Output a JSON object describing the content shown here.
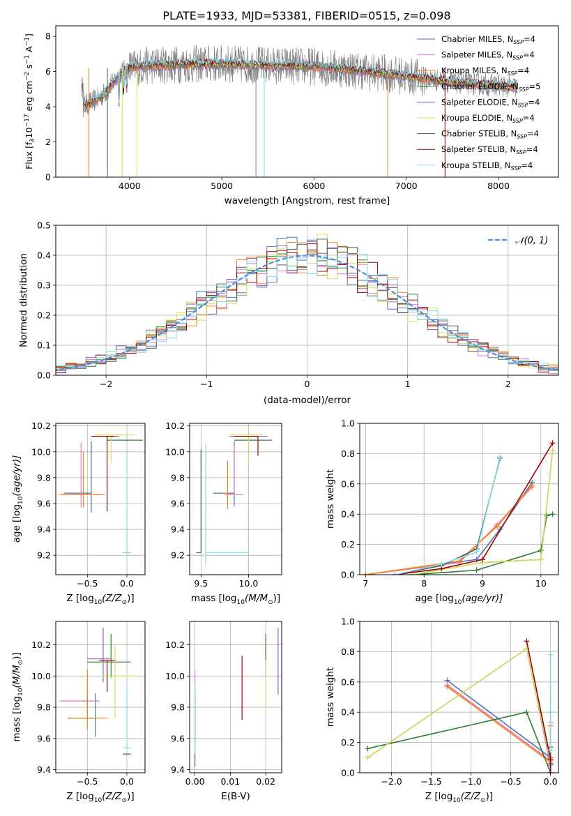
{
  "figure_title": "PLATE=1933, MJD=53381, FIBERID=0515, z=0.098",
  "colors": {
    "Chabrier MILES": "#4c72b0",
    "Salpeter MILES": "#e377c2",
    "Kroupa MILES": "#ff7f0e",
    "Chabrier ELODIE": "#2e7d32",
    "Salpeter ELODIE": "#9467bd",
    "Kroupa ELODIE": "#d4e157",
    "Chabrier STELIB": "#555555",
    "Salpeter STELIB": "#a00000",
    "Kroupa STELIB": "#80deea",
    "normal": "#4a90d9"
  },
  "chart_data": [
    {
      "id": "spectrum",
      "type": "line",
      "xlabel": "wavelength [Angstrom, rest frame]",
      "ylabel": "Flux [f",
      "ylabel_rest": "10",
      "ylabel_exp1": "−17",
      "ylabel_mid": " erg cm",
      "ylabel_exp2": "−2",
      "ylabel_mid2": " s",
      "ylabel_exp3": "−1",
      "ylabel_end": " A",
      "ylabel_exp4": "−1",
      "ylabel_close": "]",
      "xlim": [
        3200,
        8650
      ],
      "ylim": [
        0,
        8.6
      ],
      "xticks": [
        4000,
        5000,
        6000,
        7000,
        8000
      ],
      "yticks": [
        0,
        2,
        4,
        6,
        8
      ],
      "legend": [
        {
          "name": "Chabrier MILES, N",
          "sub": "SSP",
          "val": "=4"
        },
        {
          "name": "Salpeter MILES, N",
          "sub": "SSP",
          "val": "=4"
        },
        {
          "name": "Kroupa MILES, N",
          "sub": "SSP",
          "val": "=4"
        },
        {
          "name": "Chabrier ELODIE, N",
          "sub": "SSP",
          "val": "=5"
        },
        {
          "name": "Salpeter ELODIE, N",
          "sub": "SSP",
          "val": "=4"
        },
        {
          "name": "Kroupa ELODIE, N",
          "sub": "SSP",
          "val": "=4"
        },
        {
          "name": "Chabrier STELIB, N",
          "sub": "SSP",
          "val": "=4"
        },
        {
          "name": "Salpeter STELIB, N",
          "sub": "SSP",
          "val": "=4"
        },
        {
          "name": "Kroupa STELIB, N",
          "sub": "SSP",
          "val": "=4"
        }
      ],
      "continuum": [
        [
          3500,
          4.0
        ],
        [
          3600,
          4.3
        ],
        [
          3700,
          4.6
        ],
        [
          3800,
          5.2
        ],
        [
          3900,
          5.9
        ],
        [
          4000,
          6.2
        ],
        [
          4200,
          6.35
        ],
        [
          4500,
          6.4
        ],
        [
          5000,
          6.45
        ],
        [
          5500,
          6.35
        ],
        [
          6000,
          6.3
        ],
        [
          6500,
          6.05
        ],
        [
          7000,
          5.75
        ],
        [
          7500,
          5.4
        ],
        [
          8000,
          5.2
        ],
        [
          8200,
          5.1
        ]
      ],
      "legend_position": "upper right"
    },
    {
      "id": "residual_hist",
      "type": "histogram",
      "xlabel": "(data-model)/error",
      "ylabel": "Normed distribution",
      "xlim": [
        -2.5,
        2.5
      ],
      "ylim": [
        0,
        0.5
      ],
      "xticks": [
        -2,
        -1,
        0,
        1,
        2
      ],
      "yticks": [
        0,
        0.1,
        0.2,
        0.3,
        0.4,
        0.5
      ],
      "bin_width": 0.1,
      "legend": [
        {
          "name": "𝒩(0, 1)"
        }
      ],
      "legend_position": "upper right",
      "grid": true
    },
    {
      "id": "age_vs_Z",
      "type": "errorbar",
      "xlabel": "Z [log",
      "xlabel_sub": "10",
      "xlabel_rest": "(Z/Z",
      "xlabel_sun": "⊙",
      "xlabel_close": ")]",
      "ylabel": "age  [log",
      "ylabel_sub": "10",
      "ylabel_rest": "(age/yr)]",
      "xlim": [
        -0.9,
        0.23
      ],
      "ylim": [
        9.05,
        10.22
      ],
      "xticks": [
        -0.5,
        0.0
      ],
      "yticks": [
        9.2,
        9.4,
        9.6,
        9.8,
        10.0,
        10.2
      ],
      "points": [
        {
          "model": "Chabrier MILES",
          "x": -0.45,
          "y": 9.68,
          "xerr": [
            0.35,
            0.0
          ],
          "yerr": [
            0.15,
            0.4
          ]
        },
        {
          "model": "Salpeter MILES",
          "x": -0.58,
          "y": 9.67,
          "xerr": [
            0.25,
            0.3
          ],
          "yerr": [
            0.1,
            0.4
          ]
        },
        {
          "model": "Kroupa MILES",
          "x": -0.55,
          "y": 9.67,
          "xerr": [
            0.3,
            0.2
          ],
          "yerr": [
            0.1,
            0.33
          ]
        },
        {
          "model": "Chabrier ELODIE",
          "x": -0.05,
          "y": 10.09,
          "xerr": [
            0.2,
            0.25
          ],
          "yerr": [
            0.0,
            0.0
          ]
        },
        {
          "model": "Salpeter ELODIE",
          "x": -0.1,
          "y": 10.12,
          "xerr": [
            0.3,
            0.0
          ],
          "yerr": [
            0.0,
            0.0
          ]
        },
        {
          "model": "Kroupa ELODIE",
          "x": -0.2,
          "y": 10.13,
          "xerr": [
            0.2,
            0.3
          ],
          "yerr": [
            0.22,
            0.0
          ]
        },
        {
          "model": "Chabrier STELIB",
          "x": 0.0,
          "y": 9.22,
          "xerr": [
            0.05,
            0.05
          ],
          "yerr": [
            0.0,
            0.0
          ]
        },
        {
          "model": "Salpeter STELIB",
          "x": -0.25,
          "y": 10.12,
          "xerr": [
            0.2,
            0.1
          ],
          "yerr": [
            0.58,
            0.0
          ]
        },
        {
          "model": "Kroupa STELIB",
          "x": 0.0,
          "y": 9.22,
          "xerr": [
            0.05,
            0.05
          ],
          "yerr": [
            0.0,
            0.8
          ]
        }
      ]
    },
    {
      "id": "age_vs_mass",
      "type": "errorbar",
      "xlabel": "mass [log",
      "xlabel_sub": "10",
      "xlabel_rest": "(M/M",
      "xlabel_sun": "⊙",
      "xlabel_close": ")]",
      "xlim": [
        9.38,
        10.35
      ],
      "ylim": [
        9.05,
        10.22
      ],
      "xticks": [
        9.5,
        10.0
      ],
      "yticks": [
        9.2,
        9.4,
        9.6,
        9.8,
        10.0,
        10.2
      ],
      "points": [
        {
          "model": "Chabrier MILES",
          "x": 9.85,
          "y": 9.68,
          "xerr": [
            0.22,
            0.0
          ],
          "yerr": [
            0.1,
            0.4
          ]
        },
        {
          "model": "Salpeter MILES",
          "x": 9.85,
          "y": 9.67,
          "xerr": [
            0.1,
            0.1
          ],
          "yerr": [
            0.0,
            0.38
          ]
        },
        {
          "model": "Kroupa MILES",
          "x": 9.78,
          "y": 9.68,
          "xerr": [
            0.05,
            0.0
          ],
          "yerr": [
            0.12,
            0.25
          ]
        },
        {
          "model": "Chabrier ELODIE",
          "x": 10.05,
          "y": 10.09,
          "xerr": [
            0.2,
            0.2
          ],
          "yerr": [
            0.0,
            0.0
          ]
        },
        {
          "model": "Salpeter ELODIE",
          "x": 10.05,
          "y": 10.12,
          "xerr": [
            0.25,
            0.15
          ],
          "yerr": [
            0.0,
            0.0
          ]
        },
        {
          "model": "Kroupa ELODIE",
          "x": 10.0,
          "y": 10.13,
          "xerr": [
            0.2,
            0.15
          ],
          "yerr": [
            0.2,
            0.0
          ]
        },
        {
          "model": "Chabrier STELIB",
          "x": 9.5,
          "y": 9.22,
          "xerr": [
            0.05,
            0.0
          ],
          "yerr": [
            0.0,
            0.8
          ]
        },
        {
          "model": "Salpeter STELIB",
          "x": 10.1,
          "y": 10.12,
          "xerr": [
            0.25,
            0.0
          ],
          "yerr": [
            0.15,
            0.0
          ]
        },
        {
          "model": "Kroupa STELIB",
          "x": 9.55,
          "y": 9.22,
          "xerr": [
            0.0,
            0.45
          ],
          "yerr": [
            0.1,
            0.84
          ]
        }
      ]
    },
    {
      "id": "massweight_vs_age",
      "type": "line",
      "xlabel": "age  [log",
      "xlabel_sub": "10",
      "xlabel_rest": "(age/yr)]",
      "ylabel": "mass weight",
      "xlim": [
        6.9,
        10.3
      ],
      "ylim": [
        0,
        1.0
      ],
      "xticks": [
        7,
        8,
        9,
        10
      ],
      "yticks": [
        0.0,
        0.2,
        0.4,
        0.6,
        0.8,
        1.0
      ],
      "series": [
        {
          "model": "Chabrier MILES",
          "x": [
            7.0,
            8.3,
            8.9,
            9.3,
            9.85
          ],
          "y": [
            0.0,
            0.07,
            0.1,
            0.3,
            0.61
          ]
        },
        {
          "model": "Salpeter MILES",
          "x": [
            7.0,
            8.6,
            9.25,
            9.85
          ],
          "y": [
            0.0,
            0.08,
            0.33,
            0.58
          ]
        },
        {
          "model": "Kroupa MILES",
          "x": [
            7.0,
            8.6,
            9.25,
            9.85
          ],
          "y": [
            0.0,
            0.09,
            0.32,
            0.59
          ]
        },
        {
          "model": "Chabrier ELODIE",
          "x": [
            7.8,
            8.9,
            10.0,
            10.1,
            10.2
          ],
          "y": [
            0.0,
            0.03,
            0.16,
            0.39,
            0.4
          ]
        },
        {
          "model": "Salpeter ELODIE",
          "x": [
            7.8,
            9.0,
            10.0,
            10.2
          ],
          "y": [
            0.0,
            0.08,
            0.1,
            0.82
          ]
        },
        {
          "model": "Kroupa ELODIE",
          "x": [
            7.8,
            9.0,
            10.0,
            10.2
          ],
          "y": [
            0.0,
            0.08,
            0.1,
            0.82
          ]
        },
        {
          "model": "Chabrier STELIB",
          "x": [
            7.5,
            8.3,
            8.9,
            9.3
          ],
          "y": [
            0.0,
            0.06,
            0.17,
            0.77
          ]
        },
        {
          "model": "Salpeter STELIB",
          "x": [
            7.5,
            8.3,
            9.0,
            10.2
          ],
          "y": [
            0.0,
            0.04,
            0.1,
            0.87
          ]
        },
        {
          "model": "Kroupa STELIB",
          "x": [
            7.5,
            8.3,
            8.9,
            9.3
          ],
          "y": [
            0.0,
            0.07,
            0.15,
            0.78
          ]
        }
      ],
      "grid": true
    },
    {
      "id": "mass_vs_Z",
      "type": "errorbar",
      "xlabel": "Z [log",
      "xlabel_sub": "10",
      "xlabel_rest": "(Z/Z",
      "xlabel_sun": "⊙",
      "xlabel_close": ")]",
      "ylabel": "mass [log",
      "ylabel_sub": "10",
      "ylabel_rest": "(M/M",
      "ylabel_sun": "⊙",
      "ylabel_close": ")]",
      "xlim": [
        -0.9,
        0.23
      ],
      "ylim": [
        9.38,
        10.35
      ],
      "xticks": [
        -0.5,
        0.0
      ],
      "yticks": [
        9.4,
        9.6,
        9.8,
        10.0,
        10.2
      ],
      "points": [
        {
          "model": "Chabrier MILES",
          "x": -0.4,
          "y": 9.73,
          "xerr": [
            0.35,
            0.0
          ],
          "yerr": [
            0.12,
            0.16
          ]
        },
        {
          "model": "Salpeter MILES",
          "x": -0.5,
          "y": 9.84,
          "xerr": [
            0.35,
            0.15
          ],
          "yerr": [
            0.1,
            0.05
          ]
        },
        {
          "model": "Kroupa MILES",
          "x": -0.5,
          "y": 9.73,
          "xerr": [
            0.25,
            0.25
          ],
          "yerr": [
            0.07,
            0.31
          ]
        },
        {
          "model": "Chabrier ELODIE",
          "x": -0.2,
          "y": 10.09,
          "xerr": [
            0.3,
            0.25
          ],
          "yerr": [
            0.1,
            0.18
          ]
        },
        {
          "model": "Salpeter ELODIE",
          "x": -0.3,
          "y": 10.11,
          "xerr": [
            0.2,
            0.1
          ],
          "yerr": [
            0.15,
            0.2
          ]
        },
        {
          "model": "Kroupa ELODIE",
          "x": -0.15,
          "y": 10.0,
          "xerr": [
            0.2,
            0.3
          ],
          "yerr": [
            0.27,
            0.2
          ]
        },
        {
          "model": "Chabrier STELIB",
          "x": 0.0,
          "y": 9.5,
          "xerr": [
            0.05,
            0.05
          ],
          "yerr": [
            0.0,
            0.0
          ]
        },
        {
          "model": "Salpeter STELIB",
          "x": -0.25,
          "y": 10.1,
          "xerr": [
            0.1,
            0.1
          ],
          "yerr": [
            0.2,
            0.0
          ]
        },
        {
          "model": "Kroupa STELIB",
          "x": 0.0,
          "y": 9.54,
          "xerr": [
            0.05,
            0.05
          ],
          "yerr": [
            0.0,
            0.4
          ]
        }
      ]
    },
    {
      "id": "mass_vs_ebv",
      "type": "errorbar",
      "xlabel": "E(B-V)",
      "xlim": [
        -0.0015,
        0.0245
      ],
      "ylim": [
        9.38,
        10.35
      ],
      "xticks": [
        0.0,
        0.01,
        0.02
      ],
      "yticks": [
        9.4,
        9.6,
        9.8,
        10.0,
        10.2
      ],
      "points": [
        {
          "model": "Chabrier MILES",
          "x": 0.0,
          "y": 9.73,
          "xerr": [
            0.0,
            0.0
          ],
          "yerr": [
            0.16,
            0.2
          ]
        },
        {
          "model": "Salpeter MILES",
          "x": 0.0,
          "y": 9.84,
          "xerr": [
            0.0,
            0.0
          ],
          "yerr": [
            0.2,
            0.2
          ]
        },
        {
          "model": "Kroupa MILES",
          "x": 0.0,
          "y": 9.73,
          "xerr": [
            0.0,
            0.0
          ],
          "yerr": [
            0.1,
            0.2
          ]
        },
        {
          "model": "Chabrier ELODIE",
          "x": 0.02,
          "y": 10.09,
          "xerr": [
            0.0,
            0.0
          ],
          "yerr": [
            0.1,
            0.18
          ]
        },
        {
          "model": "Salpeter ELODIE",
          "x": 0.0235,
          "y": 10.11,
          "xerr": [
            0.0,
            0.0
          ],
          "yerr": [
            0.23,
            0.2
          ]
        },
        {
          "model": "Kroupa ELODIE",
          "x": 0.02,
          "y": 10.0,
          "xerr": [
            0.0,
            0.0
          ],
          "yerr": [
            0.25,
            0.1
          ]
        },
        {
          "model": "Chabrier STELIB",
          "x": 0.0,
          "y": 9.5,
          "xerr": [
            0.0,
            0.0
          ],
          "yerr": [
            0.08,
            0.3
          ]
        },
        {
          "model": "Salpeter STELIB",
          "x": 0.0133,
          "y": 9.95,
          "xerr": [
            0.0,
            0.0
          ],
          "yerr": [
            0.23,
            0.18
          ]
        },
        {
          "model": "Kroupa STELIB",
          "x": 0.0,
          "y": 9.6,
          "xerr": [
            0.0,
            0.0
          ],
          "yerr": [
            0.1,
            0.35
          ]
        }
      ]
    },
    {
      "id": "massweight_vs_Z",
      "type": "line",
      "xlabel": "Z [log",
      "xlabel_sub": "10",
      "xlabel_rest": "(Z/Z",
      "xlabel_sun": "⊙",
      "xlabel_close": ")]",
      "ylabel": "mass weight",
      "xlim": [
        -2.4,
        0.1
      ],
      "ylim": [
        0,
        1.0
      ],
      "xticks": [
        -2.0,
        -1.5,
        -1.0,
        -0.5,
        0.0
      ],
      "yticks": [
        0.0,
        0.2,
        0.4,
        0.6,
        0.8,
        1.0
      ],
      "series": [
        {
          "model": "Chabrier MILES",
          "x": [
            -1.3,
            0.0,
            0.0
          ],
          "y": [
            0.61,
            0.1,
            0.0
          ]
        },
        {
          "model": "Salpeter MILES",
          "x": [
            -1.3,
            0.0,
            0.0
          ],
          "y": [
            0.58,
            0.08,
            0.33
          ]
        },
        {
          "model": "Kroupa MILES",
          "x": [
            -1.3,
            0.0,
            0.0
          ],
          "y": [
            0.57,
            0.07,
            0.31
          ]
        },
        {
          "model": "Chabrier ELODIE",
          "x": [
            -2.3,
            -0.3,
            0.0
          ],
          "y": [
            0.16,
            0.4,
            0.0
          ]
        },
        {
          "model": "Salpeter ELODIE",
          "x": [
            -2.3,
            -0.3,
            0.0
          ],
          "y": [
            0.1,
            0.82,
            0.05
          ]
        },
        {
          "model": "Kroupa ELODIE",
          "x": [
            -2.3,
            -0.3,
            0.0
          ],
          "y": [
            0.1,
            0.82,
            0.07
          ]
        },
        {
          "model": "Chabrier STELIB",
          "x": [
            0.0,
            0.0,
            0.0
          ],
          "y": [
            0.0,
            0.06,
            0.17
          ]
        },
        {
          "model": "Salpeter STELIB",
          "x": [
            -0.3,
            0.0,
            0.0
          ],
          "y": [
            0.87,
            0.09,
            0.0
          ]
        },
        {
          "model": "Kroupa STELIB",
          "x": [
            0.0,
            0.0,
            0.0
          ],
          "y": [
            0.15,
            0.4,
            0.78
          ]
        }
      ],
      "grid": true
    }
  ]
}
